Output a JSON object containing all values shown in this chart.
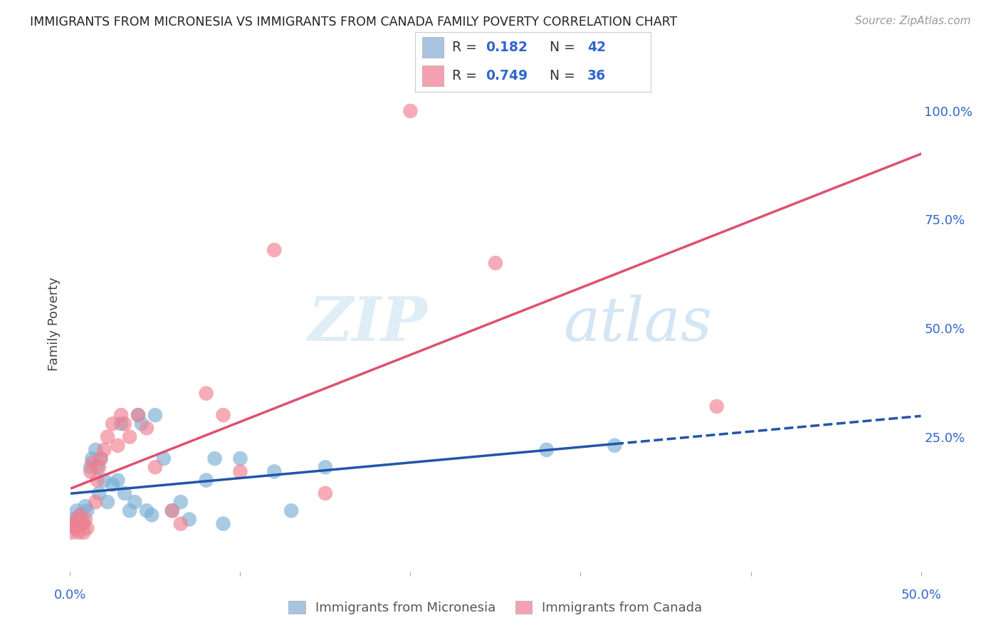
{
  "title": "IMMIGRANTS FROM MICRONESIA VS IMMIGRANTS FROM CANADA FAMILY POVERTY CORRELATION CHART",
  "source": "Source: ZipAtlas.com",
  "ylabel": "Family Poverty",
  "ytick_labels": [
    "100.0%",
    "75.0%",
    "50.0%",
    "25.0%"
  ],
  "ytick_values": [
    1.0,
    0.75,
    0.5,
    0.25
  ],
  "xlim": [
    0.0,
    0.5
  ],
  "ylim": [
    -0.06,
    1.08
  ],
  "legend_entries": [
    {
      "color": "#a8c4e0",
      "R": 0.182,
      "N": 42
    },
    {
      "color": "#f4a0b0",
      "R": 0.749,
      "N": 36
    }
  ],
  "series1_name": "Immigrants from Micronesia",
  "series2_name": "Immigrants from Canada",
  "series1_color": "#7aafd4",
  "series2_color": "#f08090",
  "series1_line_color": "#2255aa",
  "series2_line_color": "#e05070",
  "watermark_zip": "ZIP",
  "watermark_atlas": "atlas",
  "background_color": "#ffffff",
  "series1_x": [
    0.001,
    0.002,
    0.003,
    0.004,
    0.005,
    0.006,
    0.007,
    0.008,
    0.009,
    0.01,
    0.012,
    0.013,
    0.015,
    0.016,
    0.017,
    0.018,
    0.02,
    0.022,
    0.025,
    0.028,
    0.03,
    0.032,
    0.035,
    0.038,
    0.04,
    0.042,
    0.045,
    0.048,
    0.05,
    0.055,
    0.06,
    0.065,
    0.07,
    0.08,
    0.085,
    0.09,
    0.1,
    0.12,
    0.13,
    0.15,
    0.28,
    0.32
  ],
  "series1_y": [
    0.05,
    0.06,
    0.04,
    0.08,
    0.05,
    0.07,
    0.06,
    0.05,
    0.09,
    0.08,
    0.18,
    0.2,
    0.22,
    0.18,
    0.12,
    0.2,
    0.15,
    0.1,
    0.14,
    0.15,
    0.28,
    0.12,
    0.08,
    0.1,
    0.3,
    0.28,
    0.08,
    0.07,
    0.3,
    0.2,
    0.08,
    0.1,
    0.06,
    0.15,
    0.2,
    0.05,
    0.2,
    0.17,
    0.08,
    0.18,
    0.22,
    0.23
  ],
  "series2_x": [
    0.001,
    0.002,
    0.003,
    0.004,
    0.005,
    0.006,
    0.007,
    0.008,
    0.009,
    0.01,
    0.012,
    0.013,
    0.015,
    0.016,
    0.017,
    0.018,
    0.02,
    0.022,
    0.025,
    0.028,
    0.03,
    0.032,
    0.035,
    0.04,
    0.045,
    0.05,
    0.06,
    0.065,
    0.08,
    0.09,
    0.1,
    0.12,
    0.15,
    0.2,
    0.25,
    0.38
  ],
  "series2_y": [
    0.03,
    0.05,
    0.04,
    0.06,
    0.03,
    0.07,
    0.05,
    0.03,
    0.06,
    0.04,
    0.17,
    0.19,
    0.1,
    0.15,
    0.18,
    0.2,
    0.22,
    0.25,
    0.28,
    0.23,
    0.3,
    0.28,
    0.25,
    0.3,
    0.27,
    0.18,
    0.08,
    0.05,
    0.35,
    0.3,
    0.17,
    0.68,
    0.12,
    1.0,
    0.65,
    0.32
  ]
}
